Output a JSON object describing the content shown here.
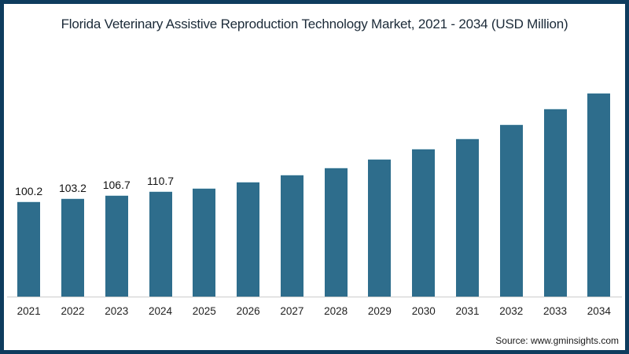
{
  "title": "Florida Veterinary Assistive Reproduction Technology Market, 2021 - 2034 (USD Million)",
  "source": "Source: www.gminsights.com",
  "colors": {
    "bar": "#2e6d8c",
    "bar_top_edge": "#cfe3ea",
    "frame_border": "#0e3c5e",
    "axis_line": "#cccccc",
    "title_text": "#1b2a38",
    "label_text": "#111111"
  },
  "chart_data": {
    "type": "bar",
    "title": "Florida Veterinary Assistive Reproduction Technology Market, 2021 - 2034 (USD Million)",
    "categories": [
      "2021",
      "2022",
      "2023",
      "2024",
      "2025",
      "2026",
      "2027",
      "2028",
      "2029",
      "2030",
      "2031",
      "2032",
      "2033",
      "2034"
    ],
    "values": [
      100.2,
      103.2,
      106.7,
      110.7,
      114.3,
      121.2,
      128.4,
      135.7,
      144.9,
      155.8,
      166.8,
      181.5,
      198.1,
      214.7
    ],
    "value_labels": [
      "100.2",
      "103.2",
      "106.7",
      "110.7",
      "",
      "",
      "",
      "",
      "",
      "",
      "",
      "",
      "",
      ""
    ],
    "xlabel": "",
    "ylabel": "",
    "ylim": [
      0,
      260
    ],
    "y_axis_visible": false,
    "grid": false,
    "legend": null
  }
}
